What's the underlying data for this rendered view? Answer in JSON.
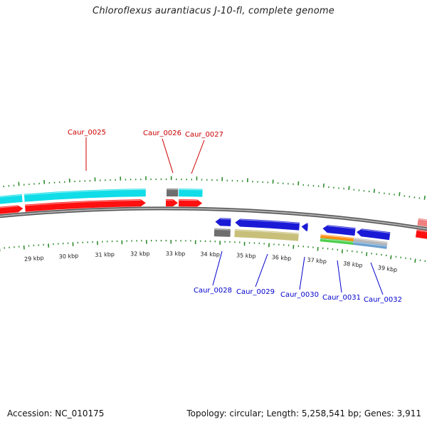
{
  "title": "Chloroflexus aurantiacus J-10-fl, complete genome",
  "footer": {
    "accession": "Accession: NC_010175",
    "topology_info": "Topology: circular; Length: 5,258,541 bp; Genes: 3,911"
  },
  "colors": {
    "ring": "#7a7a7a",
    "ticks": "#2e8b2e",
    "label_forward": "#cc0000",
    "label_reverse": "#0000cc",
    "gene_red": "#ff1010",
    "gene_cyan": "#11dde8",
    "gene_blue": "#1a1ad6",
    "gene_gray": "#6e6e6e",
    "gene_khaki": "#c8c07a",
    "gene_orange": "#ff8c10",
    "gene_green": "#4ccf4c",
    "gene_steel": "#6a9fcf",
    "gene_pink": "#ee8080"
  },
  "kbp_labels": [
    "29 kbp",
    "30 kbp",
    "31 kbp",
    "32 kbp",
    "33 kbp",
    "34 kbp",
    "35 kbp",
    "36 kbp",
    "37 kbp",
    "38 kbp",
    "39 kbp"
  ],
  "forward_genes": [
    "Caur_0025",
    "Caur_0026",
    "Caur_0027"
  ],
  "reverse_genes": [
    "Caur_0028",
    "Caur_0029",
    "Caur_0030",
    "Caur_0031",
    "Caur_0032"
  ]
}
